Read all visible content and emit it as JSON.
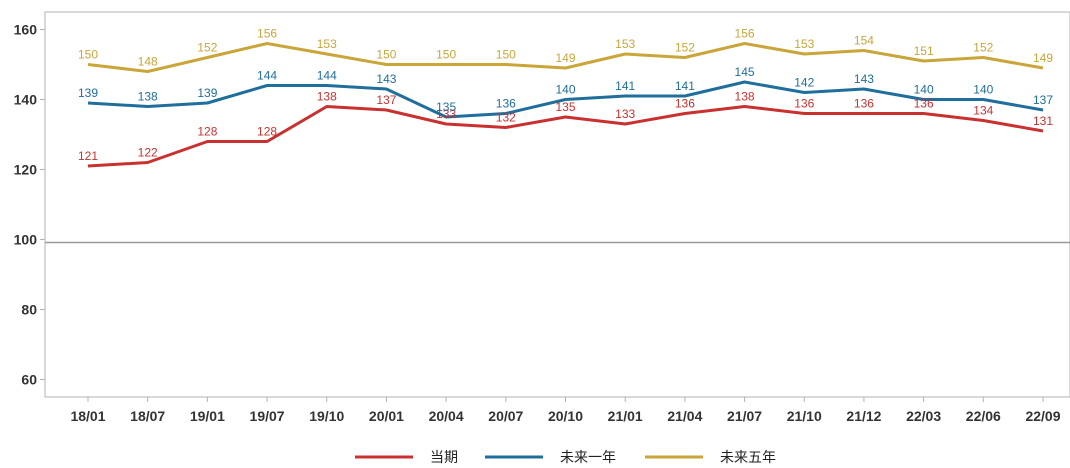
{
  "chart_data": {
    "type": "line",
    "title": "",
    "xlabel": "",
    "ylabel": "",
    "categories": [
      "18/01",
      "18/07",
      "19/01",
      "19/07",
      "19/10",
      "20/01",
      "20/04",
      "20/07",
      "20/10",
      "21/01",
      "21/04",
      "21/07",
      "21/10",
      "21/12",
      "22/03",
      "22/06",
      "22/09"
    ],
    "ylim": [
      55,
      165
    ],
    "yticks": [
      60,
      80,
      100,
      120,
      140,
      160
    ],
    "reference_line": 100,
    "grid": false,
    "legend_position": "bottom",
    "series": [
      {
        "name": "当期",
        "color": "#c8312f",
        "values": [
          121,
          122,
          128,
          128,
          138,
          137,
          133,
          132,
          135,
          133,
          136,
          138,
          136,
          136,
          136,
          134,
          131
        ]
      },
      {
        "name": "未来一年",
        "color": "#1f6e9c",
        "values": [
          139,
          138,
          139,
          144,
          144,
          143,
          135,
          136,
          140,
          141,
          141,
          145,
          142,
          143,
          140,
          140,
          137
        ]
      },
      {
        "name": "未来五年",
        "color": "#c9a53a",
        "values": [
          150,
          148,
          152,
          156,
          153,
          150,
          150,
          150,
          149,
          153,
          152,
          156,
          153,
          154,
          151,
          152,
          149
        ]
      }
    ]
  }
}
